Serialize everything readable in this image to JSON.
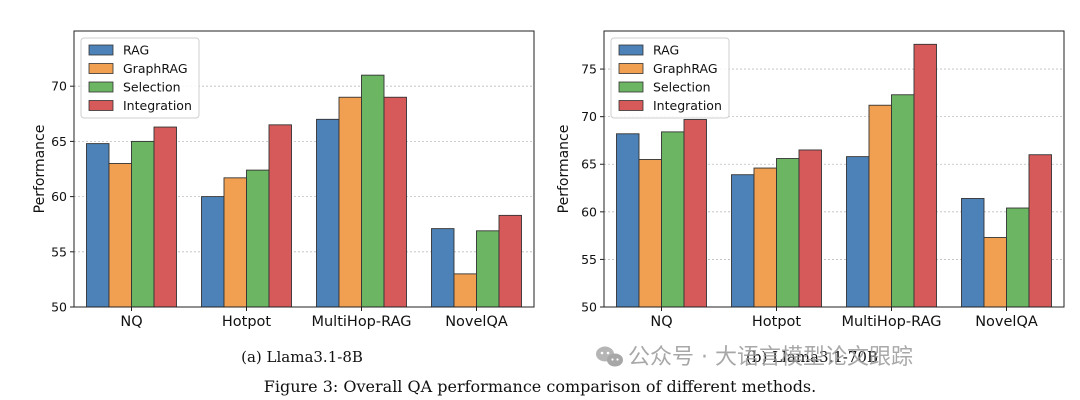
{
  "chart_data": [
    {
      "type": "bar",
      "caption": "(a) Llama3.1-8B",
      "ylabel": "Performance",
      "ylim": [
        50,
        75
      ],
      "yticks": [
        50,
        55,
        60,
        65,
        70
      ],
      "grid": true,
      "legend_position": "top-left",
      "categories": [
        "NQ",
        "Hotpot",
        "MultiHop-RAG",
        "NovelQA"
      ],
      "series": [
        {
          "name": "RAG",
          "color": "#4c82b7",
          "values": [
            64.8,
            60.0,
            67.0,
            57.1
          ]
        },
        {
          "name": "GraphRAG",
          "color": "#f1a052",
          "values": [
            63.0,
            61.7,
            69.0,
            53.0
          ]
        },
        {
          "name": "Selection",
          "color": "#6cb563",
          "values": [
            65.0,
            62.4,
            71.0,
            56.9
          ]
        },
        {
          "name": "Integration",
          "color": "#d75a5a",
          "values": [
            66.3,
            66.5,
            69.0,
            58.3
          ]
        }
      ]
    },
    {
      "type": "bar",
      "caption": "(b) Llama3.1-70B",
      "ylabel": "Performance",
      "ylim": [
        50,
        79
      ],
      "yticks": [
        50,
        55,
        60,
        65,
        70,
        75
      ],
      "grid": true,
      "legend_position": "top-left",
      "categories": [
        "NQ",
        "Hotpot",
        "MultiHop-RAG",
        "NovelQA"
      ],
      "series": [
        {
          "name": "RAG",
          "color": "#4c82b7",
          "values": [
            68.2,
            63.9,
            65.8,
            61.4
          ]
        },
        {
          "name": "GraphRAG",
          "color": "#f1a052",
          "values": [
            65.5,
            64.6,
            71.2,
            57.3
          ]
        },
        {
          "name": "Selection",
          "color": "#6cb563",
          "values": [
            68.4,
            65.6,
            72.3,
            60.4
          ]
        },
        {
          "name": "Integration",
          "color": "#d75a5a",
          "values": [
            69.7,
            66.5,
            77.6,
            66.0
          ]
        }
      ]
    }
  ],
  "figure_caption": "Figure 3: Overall QA performance comparison of different methods.",
  "watermark": "公众号 · 大语言模型论文跟踪"
}
